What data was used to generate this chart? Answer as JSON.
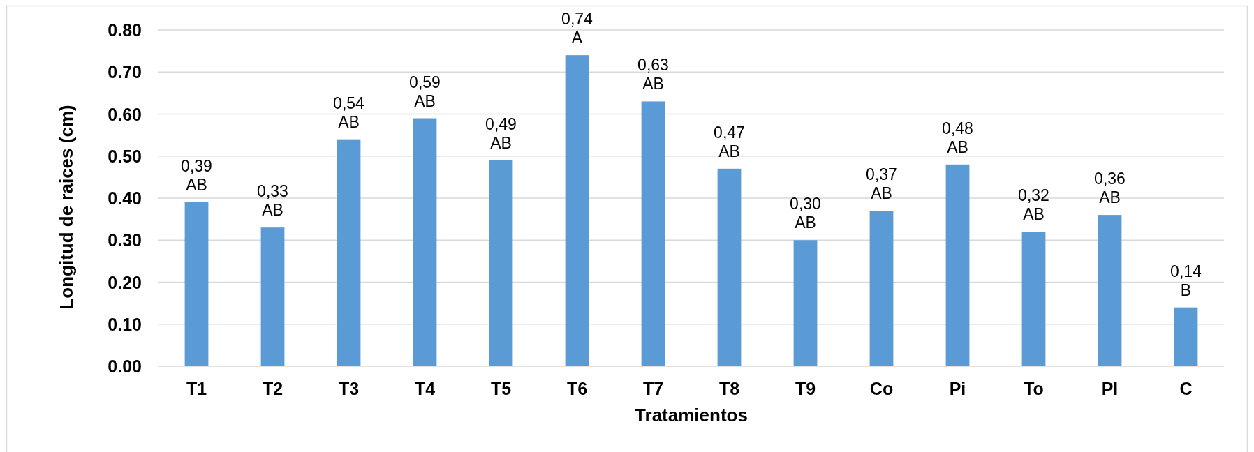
{
  "chart_data": {
    "type": "bar",
    "xlabel": "Tratamientos",
    "ylabel": "Longitud de raices (cm)",
    "categories": [
      "T1",
      "T2",
      "T3",
      "T4",
      "T5",
      "T6",
      "T7",
      "T8",
      "T9",
      "Co",
      "Pi",
      "To",
      "Pl",
      "C"
    ],
    "values": [
      0.39,
      0.33,
      0.54,
      0.59,
      0.49,
      0.74,
      0.63,
      0.47,
      0.3,
      0.37,
      0.48,
      0.32,
      0.36,
      0.14
    ],
    "value_labels": [
      "0,39",
      "0,33",
      "0,54",
      "0,59",
      "0,49",
      "0,74",
      "0,63",
      "0,47",
      "0,30",
      "0,37",
      "0,48",
      "0,32",
      "0,36",
      "0,14"
    ],
    "annotations": [
      {
        "text": "AB",
        "x": "T1",
        "y": 0.39
      },
      {
        "text": "AB",
        "x": "T2",
        "y": 0.33
      },
      {
        "text": "AB",
        "x": "T3",
        "y": 0.54
      },
      {
        "text": "AB",
        "x": "T4",
        "y": 0.59
      },
      {
        "text": "AB",
        "x": "T5",
        "y": 0.49
      },
      {
        "text": "A",
        "x": "T6",
        "y": 0.74
      },
      {
        "text": "AB",
        "x": "T7",
        "y": 0.63
      },
      {
        "text": "AB",
        "x": "T8",
        "y": 0.47
      },
      {
        "text": "AB",
        "x": "T9",
        "y": 0.3
      },
      {
        "text": "AB",
        "x": "Co",
        "y": 0.37
      },
      {
        "text": "AB",
        "x": "Pi",
        "y": 0.48
      },
      {
        "text": "AB",
        "x": "To",
        "y": 0.32
      },
      {
        "text": "AB",
        "x": "Pl",
        "y": 0.36
      },
      {
        "text": "B",
        "x": "C",
        "y": 0.14
      }
    ],
    "color": "#5b9bd5",
    "ylim": [
      0,
      0.8
    ],
    "yticks": [
      {
        "value": 0,
        "label": "0.00"
      },
      {
        "value": 0.1,
        "label": "0.10"
      },
      {
        "value": 0.2,
        "label": "0.20"
      },
      {
        "value": 0.3,
        "label": "0.30"
      },
      {
        "value": 0.4,
        "label": "0.40"
      },
      {
        "value": 0.5,
        "label": "0.50"
      },
      {
        "value": 0.6,
        "label": "0.60"
      },
      {
        "value": 0.7,
        "label": "0.70"
      },
      {
        "value": 0.8,
        "label": "0.80"
      }
    ],
    "grid": "y"
  }
}
